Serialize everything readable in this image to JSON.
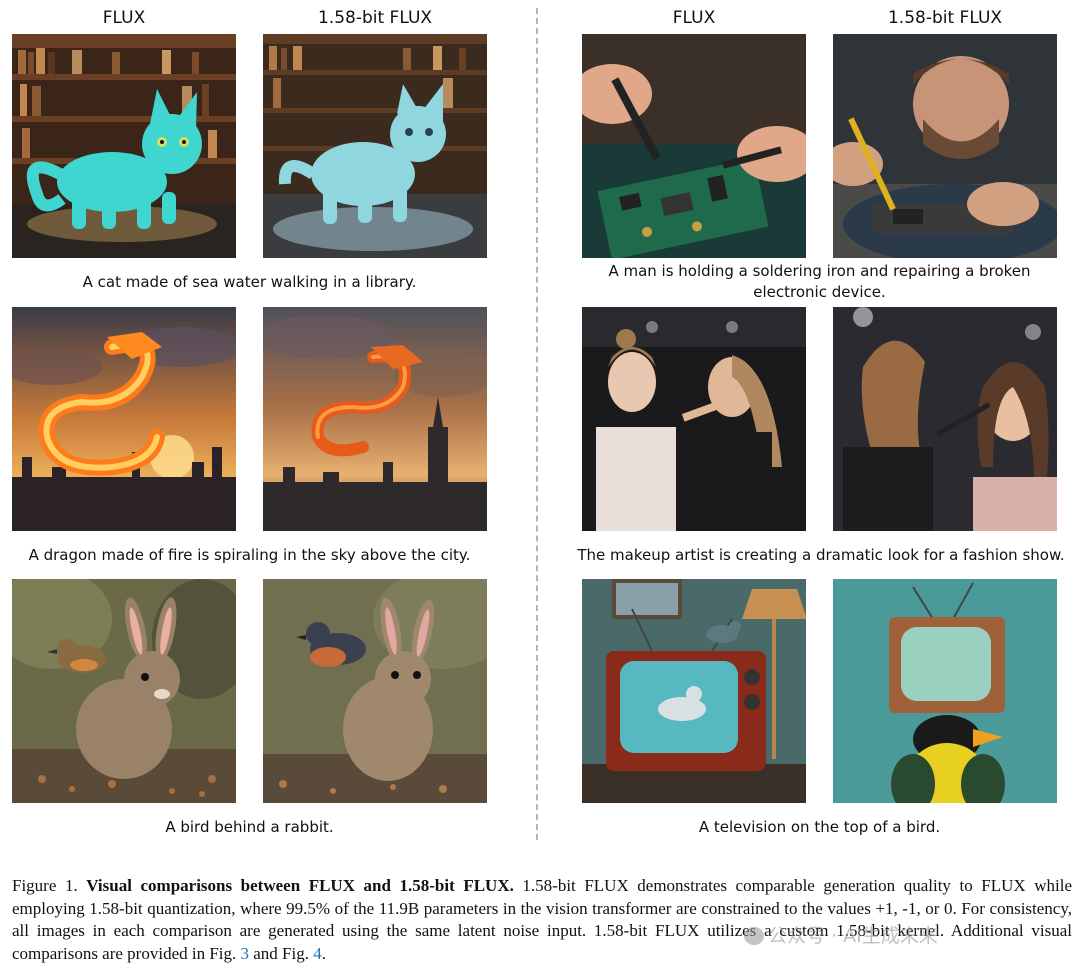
{
  "columns": {
    "left_a": "FLUX",
    "left_b": "1.58-bit FLUX",
    "right_a": "FLUX",
    "right_b": "1.58-bit FLUX"
  },
  "captions": {
    "cat": "A cat made of sea water walking in a library.",
    "dragon": "A dragon made of fire is spiraling in the sky above the city.",
    "rabbit": "A bird behind a rabbit.",
    "solder_line1": "A man is holding a soldering iron and repairing a broken",
    "solder_line2": "electronic device.",
    "makeup": "The makeup artist is creating a dramatic look for a fashion show.",
    "tv": "A television on the top of a bird."
  },
  "figure": {
    "label": "Figure 1.",
    "title": "Visual comparisons between FLUX and 1.58-bit FLUX.",
    "body_1": "1.58-bit FLUX demonstrates comparable generation quality to FLUX while employing 1.58-bit quantization, where 99.5% of the 11.9B parameters in the vision transformer are constrained to the values +1, -1, or 0. For consistency, all images in each comparison are generated using the same latent noise input. 1.58-bit FLUX utilizes a custom 1.58-bit kernel. Additional visual comparisons are provided in Fig.",
    "ref_1": "3",
    "and": "and Fig.",
    "ref_2": "4",
    "period": "."
  },
  "watermark": "公众号 · AI生成未来",
  "colors": {
    "link": "#2a6fb0",
    "divider": "#b5b5b5"
  }
}
